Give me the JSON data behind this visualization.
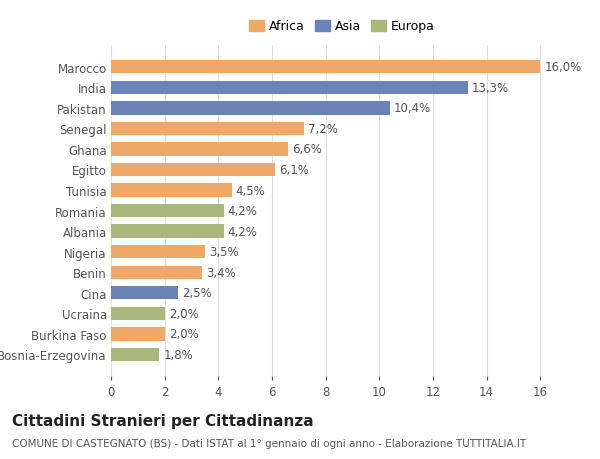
{
  "countries": [
    "Bosnia-Erzegovina",
    "Burkina Faso",
    "Ucraina",
    "Cina",
    "Benin",
    "Nigeria",
    "Albania",
    "Romania",
    "Tunisia",
    "Egitto",
    "Ghana",
    "Senegal",
    "Pakistan",
    "India",
    "Marocco"
  ],
  "values": [
    1.8,
    2.0,
    2.0,
    2.5,
    3.4,
    3.5,
    4.2,
    4.2,
    4.5,
    6.1,
    6.6,
    7.2,
    10.4,
    13.3,
    16.0
  ],
  "continents": [
    "Europa",
    "Africa",
    "Europa",
    "Asia",
    "Africa",
    "Africa",
    "Europa",
    "Europa",
    "Africa",
    "Africa",
    "Africa",
    "Africa",
    "Asia",
    "Asia",
    "Africa"
  ],
  "colors": {
    "Africa": "#F0A868",
    "Asia": "#6B84B8",
    "Europa": "#A8B87A"
  },
  "legend_labels": [
    "Africa",
    "Asia",
    "Europa"
  ],
  "legend_colors": [
    "#F0A868",
    "#6B84B8",
    "#A8B87A"
  ],
  "title": "Cittadini Stranieri per Cittadinanza",
  "subtitle": "COMUNE DI CASTEGNATO (BS) - Dati ISTAT al 1° gennaio di ogni anno - Elaborazione TUTTITALIA.IT",
  "xlim": [
    0,
    17
  ],
  "xticks": [
    0,
    2,
    4,
    6,
    8,
    10,
    12,
    14,
    16
  ],
  "background_color": "#ffffff",
  "grid_color": "#e0e0e0",
  "bar_height": 0.65,
  "label_fontsize": 8.5,
  "tick_fontsize": 8.5,
  "title_fontsize": 11,
  "subtitle_fontsize": 7.5
}
